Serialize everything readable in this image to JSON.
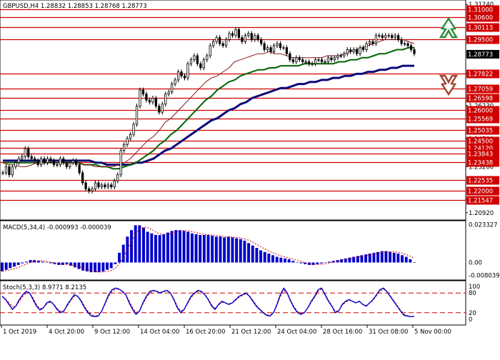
{
  "header": {
    "symbol_line": "GBPUSD,H4  1.28832 1.28853 1.28768 1.28773"
  },
  "colors": {
    "frame": "#000000",
    "level_line": "#d00000",
    "level_label_bg": "#d00000",
    "price_label_bg": "#000000",
    "candle": "#000000",
    "ma_fast": "#8b1a1a",
    "ma_mid": "#006400",
    "ma_slow": "#0a0a78",
    "macd_hist": "#0000cc",
    "macd_signal": "#cc0000",
    "stoch_main": "#0000cc",
    "stoch_signal": "#cc0000",
    "arrow_up": "#2e8b3a",
    "arrow_down": "#a0442a"
  },
  "icons": {
    "up": "up-arrow-icon",
    "down": "down-arrow-icon"
  },
  "chart_data": [
    {
      "type": "candlestick",
      "title": "GBPUSD,H4",
      "ohlc_current": {
        "open": 1.28832,
        "high": 1.28853,
        "low": 1.28768,
        "close": 1.28773
      },
      "ylim": [
        1.2063,
        1.3139
      ],
      "y_ticks": [
        "1.31240",
        "1.29580",
        "1.27820",
        "1.26230",
        "1.24580",
        "1.23200",
        "1.21580",
        "1.20920"
      ],
      "levels": [
        "1.31000",
        "1.30600",
        "1.30113",
        "1.29500",
        "1.27822",
        "1.27059",
        "1.26598",
        "1.26000",
        "1.25569",
        "1.25035",
        "1.24500",
        "1.24120",
        "1.23843",
        "1.23438",
        "1.22535",
        "1.22000",
        "1.21547"
      ],
      "current_price_label": "1.28773",
      "x_ticks": [
        "1 Oct 2019",
        "4 Oct 20:00",
        "9 Oct 12:00",
        "14 Oct 04:00",
        "16 Oct 20:00",
        "21 Oct 12:00",
        "24 Oct 04:00",
        "28 Oct 16:00",
        "31 Oct 08:00",
        "5 Nov 00:00"
      ],
      "close": [
        1.229,
        1.232,
        1.228,
        1.232,
        1.234,
        1.236,
        1.237,
        1.241,
        1.237,
        1.236,
        1.235,
        1.233,
        1.236,
        1.234,
        1.236,
        1.235,
        1.233,
        1.233,
        1.236,
        1.234,
        1.232,
        1.234,
        1.235,
        1.233,
        1.229,
        1.224,
        1.221,
        1.22,
        1.221,
        1.224,
        1.222,
        1.223,
        1.222,
        1.223,
        1.222,
        1.225,
        1.228,
        1.24,
        1.243,
        1.246,
        1.248,
        1.253,
        1.262,
        1.27,
        1.268,
        1.265,
        1.264,
        1.266,
        1.262,
        1.259,
        1.263,
        1.268,
        1.269,
        1.273,
        1.275,
        1.279,
        1.277,
        1.276,
        1.283,
        1.285,
        1.287,
        1.283,
        1.281,
        1.285,
        1.287,
        1.292,
        1.294,
        1.296,
        1.293,
        1.292,
        1.295,
        1.298,
        1.297,
        1.3,
        1.296,
        1.294,
        1.297,
        1.298,
        1.295,
        1.297,
        1.295,
        1.293,
        1.29,
        1.291,
        1.289,
        1.292,
        1.293,
        1.291,
        1.291,
        1.288,
        1.285,
        1.284,
        1.286,
        1.285,
        1.284,
        1.284,
        1.283,
        1.283,
        1.285,
        1.285,
        1.284,
        1.284,
        1.286,
        1.285,
        1.286,
        1.287,
        1.287,
        1.288,
        1.29,
        1.289,
        1.29,
        1.288,
        1.291,
        1.29,
        1.293,
        1.294,
        1.293,
        1.297,
        1.297,
        1.296,
        1.297,
        1.297,
        1.296,
        1.297,
        1.295,
        1.293,
        1.293,
        1.292,
        1.29,
        1.288
      ],
      "series": [
        {
          "values": [
            1.234,
            1.233,
            1.233,
            1.232,
            1.232,
            1.233,
            1.234,
            1.234,
            1.234,
            1.234,
            1.234,
            1.234,
            1.234,
            1.234,
            1.233,
            1.233,
            1.232,
            1.232,
            1.232,
            1.232,
            1.233,
            1.234,
            1.236,
            1.239,
            1.242,
            1.245,
            1.247,
            1.25,
            1.254,
            1.256,
            1.259,
            1.262,
            1.265,
            1.268,
            1.271,
            1.274,
            1.276,
            1.277,
            1.279,
            1.281,
            1.284,
            1.285,
            1.286,
            1.287,
            1.288,
            1.288,
            1.289,
            1.288,
            1.288,
            1.287,
            1.286,
            1.286,
            1.286,
            1.286,
            1.286,
            1.286,
            1.287,
            1.287,
            1.287,
            1.288,
            1.289,
            1.29,
            1.291,
            1.292,
            1.293,
            1.294,
            1.295,
            1.295,
            1.295,
            1.295,
            1.294,
            1.293
          ]
        },
        {
          "values": [
            1.234,
            1.234,
            1.234,
            1.234,
            1.234,
            1.234,
            1.234,
            1.234,
            1.234,
            1.234,
            1.234,
            1.234,
            1.234,
            1.234,
            1.233,
            1.233,
            1.233,
            1.232,
            1.232,
            1.231,
            1.231,
            1.232,
            1.233,
            1.234,
            1.236,
            1.238,
            1.24,
            1.243,
            1.245,
            1.248,
            1.25,
            1.253,
            1.256,
            1.259,
            1.262,
            1.265,
            1.267,
            1.27,
            1.272,
            1.274,
            1.275,
            1.277,
            1.278,
            1.279,
            1.28,
            1.28,
            1.281,
            1.281,
            1.282,
            1.282,
            1.282,
            1.282,
            1.283,
            1.283,
            1.283,
            1.283,
            1.283,
            1.283,
            1.284,
            1.284,
            1.285,
            1.285,
            1.286,
            1.286,
            1.287,
            1.288,
            1.288,
            1.289,
            1.29,
            1.29,
            1.291,
            1.291
          ]
        },
        {
          "values": [
            1.235,
            1.235,
            1.235,
            1.235,
            1.235,
            1.235,
            1.235,
            1.235,
            1.235,
            1.235,
            1.235,
            1.235,
            1.235,
            1.235,
            1.235,
            1.235,
            1.234,
            1.234,
            1.233,
            1.233,
            1.233,
            1.233,
            1.233,
            1.234,
            1.234,
            1.235,
            1.236,
            1.238,
            1.24,
            1.241,
            1.243,
            1.245,
            1.247,
            1.249,
            1.251,
            1.253,
            1.255,
            1.256,
            1.258,
            1.26,
            1.261,
            1.263,
            1.264,
            1.266,
            1.267,
            1.268,
            1.269,
            1.27,
            1.271,
            1.271,
            1.272,
            1.273,
            1.273,
            1.274,
            1.274,
            1.275,
            1.275,
            1.276,
            1.276,
            1.277,
            1.277,
            1.278,
            1.278,
            1.279,
            1.279,
            1.28,
            1.28,
            1.281,
            1.281,
            1.282,
            1.282,
            1.282
          ]
        }
      ]
    },
    {
      "type": "bar",
      "title": "MACD(5,34,4) -0.000993 -0.000039",
      "ylim": [
        -0.0095,
        0.0245
      ],
      "y_ticks": [
        "0.023327",
        "0.00",
        "-0.008039"
      ],
      "values": [
        -0.0055,
        -0.0045,
        -0.0035,
        -0.0025,
        -0.0015,
        -0.0005,
        0.0005,
        0.0015,
        0.0015,
        0.001,
        0.0005,
        0.0,
        -0.0005,
        -0.001,
        -0.0015,
        -0.0015,
        -0.001,
        -0.002,
        -0.003,
        -0.004,
        -0.005,
        -0.0055,
        -0.006,
        -0.006,
        -0.006,
        -0.0055,
        -0.0045,
        -0.0035,
        -0.001,
        0.006,
        0.011,
        0.016,
        0.02,
        0.023,
        0.023,
        0.0215,
        0.019,
        0.018,
        0.017,
        0.017,
        0.0175,
        0.0185,
        0.0195,
        0.02,
        0.02,
        0.0195,
        0.019,
        0.018,
        0.0175,
        0.017,
        0.017,
        0.017,
        0.0165,
        0.016,
        0.016,
        0.0155,
        0.016,
        0.0155,
        0.015,
        0.0145,
        0.0135,
        0.012,
        0.0105,
        0.009,
        0.0075,
        0.0065,
        0.0055,
        0.0045,
        0.0035,
        0.003,
        0.0025,
        0.002,
        0.001,
        0.0,
        -0.0005,
        -0.001,
        -0.0015,
        -0.0015,
        -0.001,
        -0.0005,
        0.0,
        0.0005,
        0.001,
        0.0015,
        0.002,
        0.0025,
        0.003,
        0.0035,
        0.004,
        0.0045,
        0.005,
        0.0055,
        0.006,
        0.0065,
        0.007,
        0.007,
        0.0065,
        0.006,
        0.0055,
        0.0045,
        0.0035,
        0.002,
        0.0
      ]
    },
    {
      "type": "line",
      "title": "Stoch(5,3,3) 8.9771 8.2135",
      "ylim": [
        0,
        100
      ],
      "y_ticks": [
        "100",
        "80",
        "20",
        "0"
      ],
      "series": [
        {
          "values": [
            70,
            60,
            45,
            30,
            40,
            60,
            75,
            85,
            80,
            60,
            40,
            28,
            35,
            50,
            55,
            45,
            30,
            20,
            25,
            45,
            60,
            75,
            70,
            55,
            35,
            20,
            10,
            8,
            10,
            25,
            50,
            75,
            90,
            95,
            92,
            85,
            75,
            50,
            30,
            15,
            25,
            50,
            70,
            85,
            88,
            85,
            80,
            85,
            88,
            80,
            60,
            35,
            20,
            30,
            50,
            70,
            80,
            88,
            85,
            75,
            60,
            40,
            30,
            45,
            55,
            50,
            45,
            50,
            60,
            70,
            75,
            80,
            70,
            55,
            40,
            30,
            20,
            12,
            10,
            20,
            45,
            75,
            95,
            80,
            55,
            35,
            20,
            15,
            20,
            35,
            55,
            70,
            90,
            95,
            75,
            55,
            40,
            20,
            25,
            45,
            55,
            60,
            55,
            50,
            55,
            45,
            40,
            50,
            60,
            75,
            90,
            95,
            85,
            70,
            55,
            40,
            25,
            12,
            10,
            8,
            9
          ]
        },
        {
          "values": [
            68,
            62,
            50,
            38,
            40,
            55,
            70,
            80,
            80,
            65,
            45,
            32,
            35,
            47,
            52,
            46,
            33,
            24,
            26,
            42,
            57,
            70,
            70,
            58,
            40,
            24,
            14,
            10,
            12,
            25,
            47,
            70,
            85,
            92,
            92,
            86,
            76,
            55,
            35,
            20,
            26,
            47,
            66,
            80,
            86,
            85,
            82,
            84,
            86,
            80,
            63,
            40,
            25,
            30,
            48,
            66,
            78,
            85,
            84,
            76,
            62,
            44,
            34,
            43,
            52,
            50,
            47,
            50,
            58,
            67,
            73,
            78,
            71,
            58,
            43,
            32,
            22,
            14,
            12,
            21,
            42,
            70,
            88,
            80,
            58,
            38,
            24,
            18,
            21,
            34,
            52,
            67,
            85,
            92,
            78,
            58,
            42,
            24,
            26,
            42,
            52,
            58,
            55,
            51,
            54,
            46,
            42,
            49,
            58,
            72,
            86,
            92,
            85,
            72,
            57,
            42,
            28,
            15,
            11,
            8,
            8
          ]
        }
      ],
      "levels": [
        80,
        20
      ]
    }
  ]
}
